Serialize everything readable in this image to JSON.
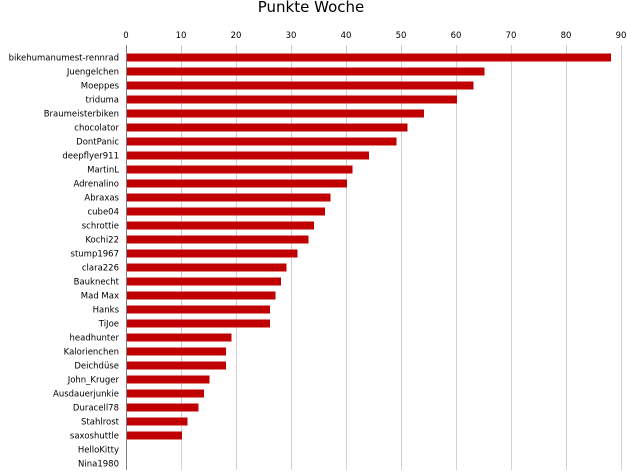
{
  "chart_data": {
    "type": "bar",
    "orientation": "horizontal",
    "title": "Punkte Woche",
    "xlabel": "",
    "ylabel": "",
    "xlim": [
      0,
      90
    ],
    "ticks": [
      0,
      10,
      20,
      30,
      40,
      50,
      60,
      70,
      80,
      90
    ],
    "grid": true,
    "axis_position": "top",
    "bar_color": "#c00000",
    "categories": [
      "bikehumanumest-rennrad",
      "Juengelchen",
      "Moeppes",
      "triduma",
      "Braumeisterbiken",
      "chocolator",
      "DontPanic",
      "deepflyer911",
      "MartinL",
      "Adrenalino",
      "Abraxas",
      "cube04",
      "schrottie",
      "Kochi22",
      "stump1967",
      "clara226",
      "Bauknecht",
      "Mad Max",
      "Hanks",
      "TiJoe",
      "headhunter",
      "Kalorienchen",
      "Deichdüse",
      "John_Kruger",
      "Ausdauerjunkie",
      "Duracell78",
      "Stahlrost",
      "saxoshuttle",
      "HelloKitty",
      "Nina1980"
    ],
    "values": [
      88,
      65,
      63,
      60,
      54,
      51,
      49,
      44,
      41,
      40,
      37,
      36,
      34,
      33,
      31,
      29,
      28,
      27,
      26,
      26,
      19,
      18,
      18,
      15,
      14,
      13,
      11,
      10,
      0,
      0
    ]
  }
}
